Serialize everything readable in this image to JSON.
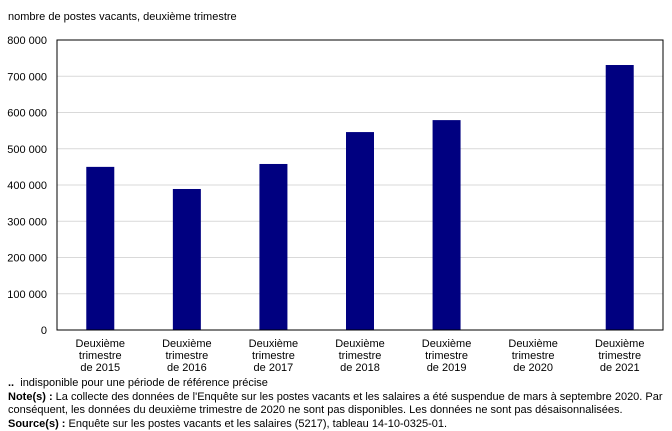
{
  "chart_data": {
    "type": "bar",
    "ylabel": "nombre de postes vacants, deuxième trimestre",
    "categories": [
      [
        "Deuxième",
        "trimestre",
        "de 2015"
      ],
      [
        "Deuxième",
        "trimestre",
        "de 2016"
      ],
      [
        "Deuxième",
        "trimestre",
        "de 2017"
      ],
      [
        "Deuxième",
        "trimestre",
        "de 2018"
      ],
      [
        "Deuxième",
        "trimestre",
        "de 2019"
      ],
      [
        "Deuxième",
        "trimestre",
        "de 2020"
      ],
      [
        "Deuxième",
        "trimestre",
        "de 2021"
      ]
    ],
    "values": [
      450000,
      389000,
      458000,
      546000,
      579000,
      null,
      731000
    ],
    "ylim": [
      0,
      800000
    ],
    "yticks": [
      0,
      100000,
      200000,
      300000,
      400000,
      500000,
      600000,
      700000,
      800000
    ],
    "ytick_labels": [
      "0",
      "100 000",
      "200 000",
      "300 000",
      "400 000",
      "500 000",
      "600 000",
      "700 000",
      "800 000"
    ],
    "grid": true,
    "bar_color": "#000080"
  },
  "footnotes": {
    "symbol": "..",
    "symbol_text": "indisponible pour une période de référence précise",
    "note_label": "Note(s) :",
    "note_text": "La collecte des données de l'Enquête sur les postes vacants et les salaires a été suspendue de mars à septembre 2020. Par conséquent, les données du deuxième trimestre de 2020 ne sont pas disponibles. Les données ne sont pas désaisonnalisées.",
    "source_label": "Source(s) :",
    "source_text": "Enquête sur les postes vacants et les salaires (5217), tableau 14-10-0325-01."
  }
}
